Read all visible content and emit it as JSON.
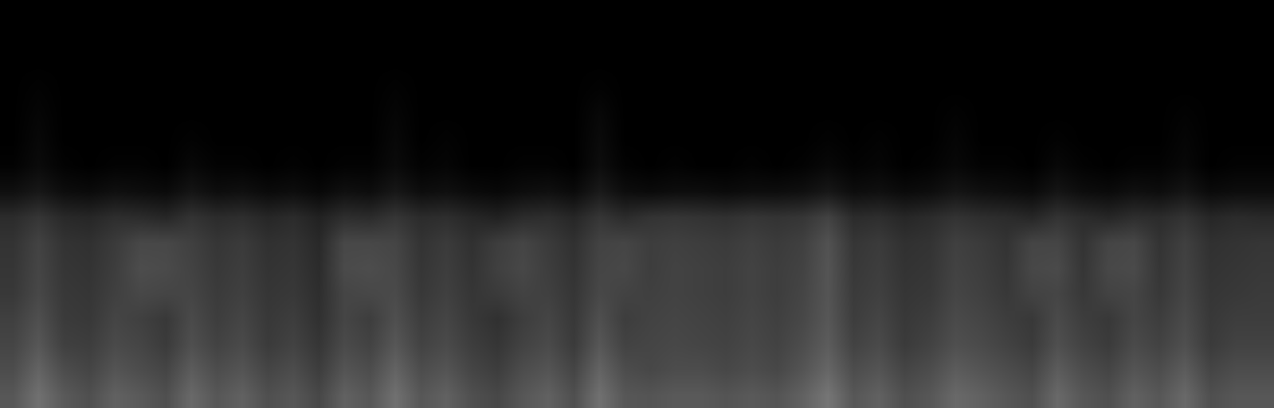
{
  "chart_data": {
    "type": "heatmap",
    "tick_labels": false,
    "grid": false,
    "zlim": [
      0,
      100
    ],
    "colors": [
      "#000000",
      "#ffffff"
    ],
    "z": [
      [
        34,
        44,
        35,
        31,
        38,
        35,
        31,
        41,
        34,
        38,
        31,
        34,
        28,
        38,
        34,
        44,
        34,
        38,
        31,
        28,
        34,
        38,
        31,
        44,
        34,
        33,
        35,
        35,
        33,
        35,
        33,
        38,
        46,
        34,
        38,
        31,
        34,
        41,
        38,
        34,
        31,
        41,
        34,
        31,
        38,
        34,
        41,
        31,
        34,
        34
      ],
      [
        30,
        39,
        30,
        27,
        33,
        30,
        27,
        36,
        30,
        33,
        27,
        30,
        24,
        33,
        30,
        39,
        30,
        33,
        27,
        24,
        30,
        33,
        27,
        39,
        30,
        28,
        30,
        30,
        28,
        30,
        28,
        33,
        40,
        30,
        33,
        27,
        30,
        36,
        33,
        30,
        27,
        36,
        30,
        27,
        33,
        30,
        36,
        27,
        30,
        30
      ],
      [
        27,
        34,
        25,
        24,
        29,
        27,
        23,
        31,
        26,
        29,
        23,
        26,
        21,
        29,
        26,
        34,
        26,
        29,
        24,
        21,
        26,
        29,
        23,
        34,
        26,
        27,
        28,
        27,
        26,
        28,
        26,
        30,
        36,
        26,
        29,
        23,
        26,
        31,
        29,
        26,
        23,
        31,
        26,
        23,
        29,
        26,
        31,
        23,
        26,
        26
      ],
      [
        25,
        31,
        23,
        22,
        27,
        25,
        22,
        29,
        24,
        27,
        22,
        24,
        19,
        27,
        24,
        31,
        24,
        27,
        22,
        19,
        24,
        27,
        22,
        31,
        24,
        26,
        27,
        26,
        25,
        27,
        25,
        28,
        34,
        24,
        27,
        22,
        24,
        29,
        27,
        24,
        22,
        29,
        24,
        22,
        27,
        24,
        29,
        22,
        24,
        24
      ],
      [
        22,
        28,
        22,
        21,
        25,
        28,
        27,
        27,
        23,
        25,
        21,
        22,
        18,
        27,
        28,
        29,
        22,
        25,
        21,
        23,
        26,
        25,
        21,
        28,
        26,
        25,
        26,
        25,
        24,
        26,
        24,
        27,
        33,
        23,
        25,
        21,
        22,
        27,
        25,
        22,
        26,
        27,
        22,
        26,
        27,
        22,
        27,
        21,
        22,
        23
      ],
      [
        21,
        27,
        21,
        20,
        24,
        30,
        29,
        26,
        22,
        24,
        20,
        21,
        17,
        29,
        30,
        28,
        21,
        24,
        20,
        25,
        28,
        24,
        20,
        27,
        28,
        24,
        26,
        25,
        24,
        26,
        24,
        26,
        33,
        22,
        24,
        20,
        21,
        26,
        24,
        21,
        28,
        29,
        21,
        28,
        29,
        21,
        26,
        20,
        21,
        22
      ],
      [
        20,
        26,
        20,
        19,
        23,
        28,
        28,
        25,
        21,
        23,
        19,
        20,
        16,
        28,
        28,
        27,
        20,
        23,
        19,
        24,
        27,
        23,
        19,
        26,
        27,
        24,
        25,
        24,
        23,
        25,
        23,
        25,
        32,
        21,
        23,
        19,
        20,
        25,
        23,
        20,
        27,
        27,
        20,
        27,
        28,
        20,
        25,
        19,
        20,
        21
      ],
      [
        17,
        21,
        16,
        15,
        18,
        17,
        15,
        20,
        17,
        18,
        15,
        17,
        13,
        18,
        17,
        21,
        17,
        18,
        15,
        13,
        17,
        18,
        15,
        21,
        17,
        20,
        21,
        20,
        19,
        21,
        20,
        21,
        26,
        17,
        18,
        15,
        17,
        20,
        18,
        17,
        15,
        20,
        17,
        15,
        18,
        17,
        20,
        15,
        17,
        16
      ],
      [
        6,
        9,
        5,
        4,
        6,
        5,
        4,
        8,
        5,
        6,
        4,
        5,
        3,
        6,
        5,
        9,
        5,
        6,
        4,
        3,
        5,
        6,
        4,
        10,
        5,
        4,
        5,
        5,
        4,
        5,
        5,
        6,
        9,
        5,
        6,
        4,
        5,
        8,
        6,
        5,
        4,
        8,
        5,
        4,
        6,
        5,
        8,
        4,
        5,
        5
      ],
      [
        1,
        4,
        1,
        0,
        1,
        1,
        0,
        3,
        1,
        1,
        0,
        1,
        0,
        1,
        1,
        4,
        1,
        2,
        0,
        0,
        1,
        1,
        0,
        5,
        1,
        0,
        1,
        0,
        0,
        1,
        0,
        1,
        3,
        1,
        2,
        0,
        1,
        3,
        1,
        1,
        0,
        3,
        1,
        0,
        1,
        1,
        3,
        0,
        1,
        1
      ],
      [
        0,
        3,
        0,
        0,
        0,
        0,
        0,
        1,
        0,
        0,
        0,
        0,
        0,
        0,
        0,
        3,
        0,
        1,
        0,
        0,
        0,
        0,
        0,
        4,
        0,
        0,
        0,
        0,
        0,
        0,
        0,
        0,
        1,
        0,
        1,
        0,
        0,
        2,
        0,
        0,
        0,
        1,
        0,
        0,
        0,
        0,
        2,
        0,
        0,
        0
      ],
      [
        0,
        2,
        0,
        0,
        0,
        0,
        0,
        0,
        0,
        0,
        0,
        0,
        0,
        0,
        0,
        2,
        0,
        0,
        0,
        0,
        0,
        0,
        0,
        3,
        0,
        0,
        0,
        0,
        0,
        0,
        0,
        0,
        0,
        0,
        0,
        0,
        0,
        1,
        0,
        0,
        0,
        0,
        0,
        0,
        0,
        0,
        1,
        0,
        0,
        0
      ],
      [
        0,
        1,
        0,
        0,
        0,
        0,
        0,
        0,
        0,
        0,
        0,
        0,
        0,
        0,
        0,
        1,
        0,
        0,
        0,
        0,
        0,
        0,
        0,
        1,
        0,
        0,
        0,
        0,
        0,
        0,
        0,
        0,
        0,
        0,
        0,
        0,
        0,
        0,
        0,
        0,
        0,
        0,
        0,
        0,
        0,
        0,
        0,
        0,
        0,
        0
      ],
      [
        0,
        0,
        0,
        0,
        0,
        0,
        0,
        0,
        0,
        0,
        0,
        0,
        0,
        0,
        0,
        0,
        0,
        0,
        0,
        0,
        0,
        0,
        0,
        0,
        0,
        0,
        0,
        0,
        0,
        0,
        0,
        0,
        0,
        0,
        0,
        0,
        0,
        0,
        0,
        0,
        0,
        0,
        0,
        0,
        0,
        0,
        0,
        0,
        0,
        0
      ],
      [
        0,
        0,
        0,
        0,
        0,
        0,
        0,
        0,
        0,
        0,
        0,
        0,
        0,
        0,
        0,
        0,
        0,
        0,
        0,
        0,
        0,
        0,
        0,
        0,
        0,
        0,
        0,
        0,
        0,
        0,
        0,
        0,
        0,
        0,
        0,
        0,
        0,
        0,
        0,
        0,
        0,
        0,
        0,
        0,
        0,
        0,
        0,
        0,
        0,
        0
      ],
      [
        0,
        0,
        0,
        0,
        0,
        0,
        0,
        0,
        0,
        0,
        0,
        0,
        0,
        0,
        0,
        0,
        0,
        0,
        0,
        0,
        0,
        0,
        0,
        0,
        0,
        0,
        0,
        0,
        0,
        0,
        0,
        0,
        0,
        0,
        0,
        0,
        0,
        0,
        0,
        0,
        0,
        0,
        0,
        0,
        0,
        0,
        0,
        0,
        0,
        0
      ]
    ]
  }
}
